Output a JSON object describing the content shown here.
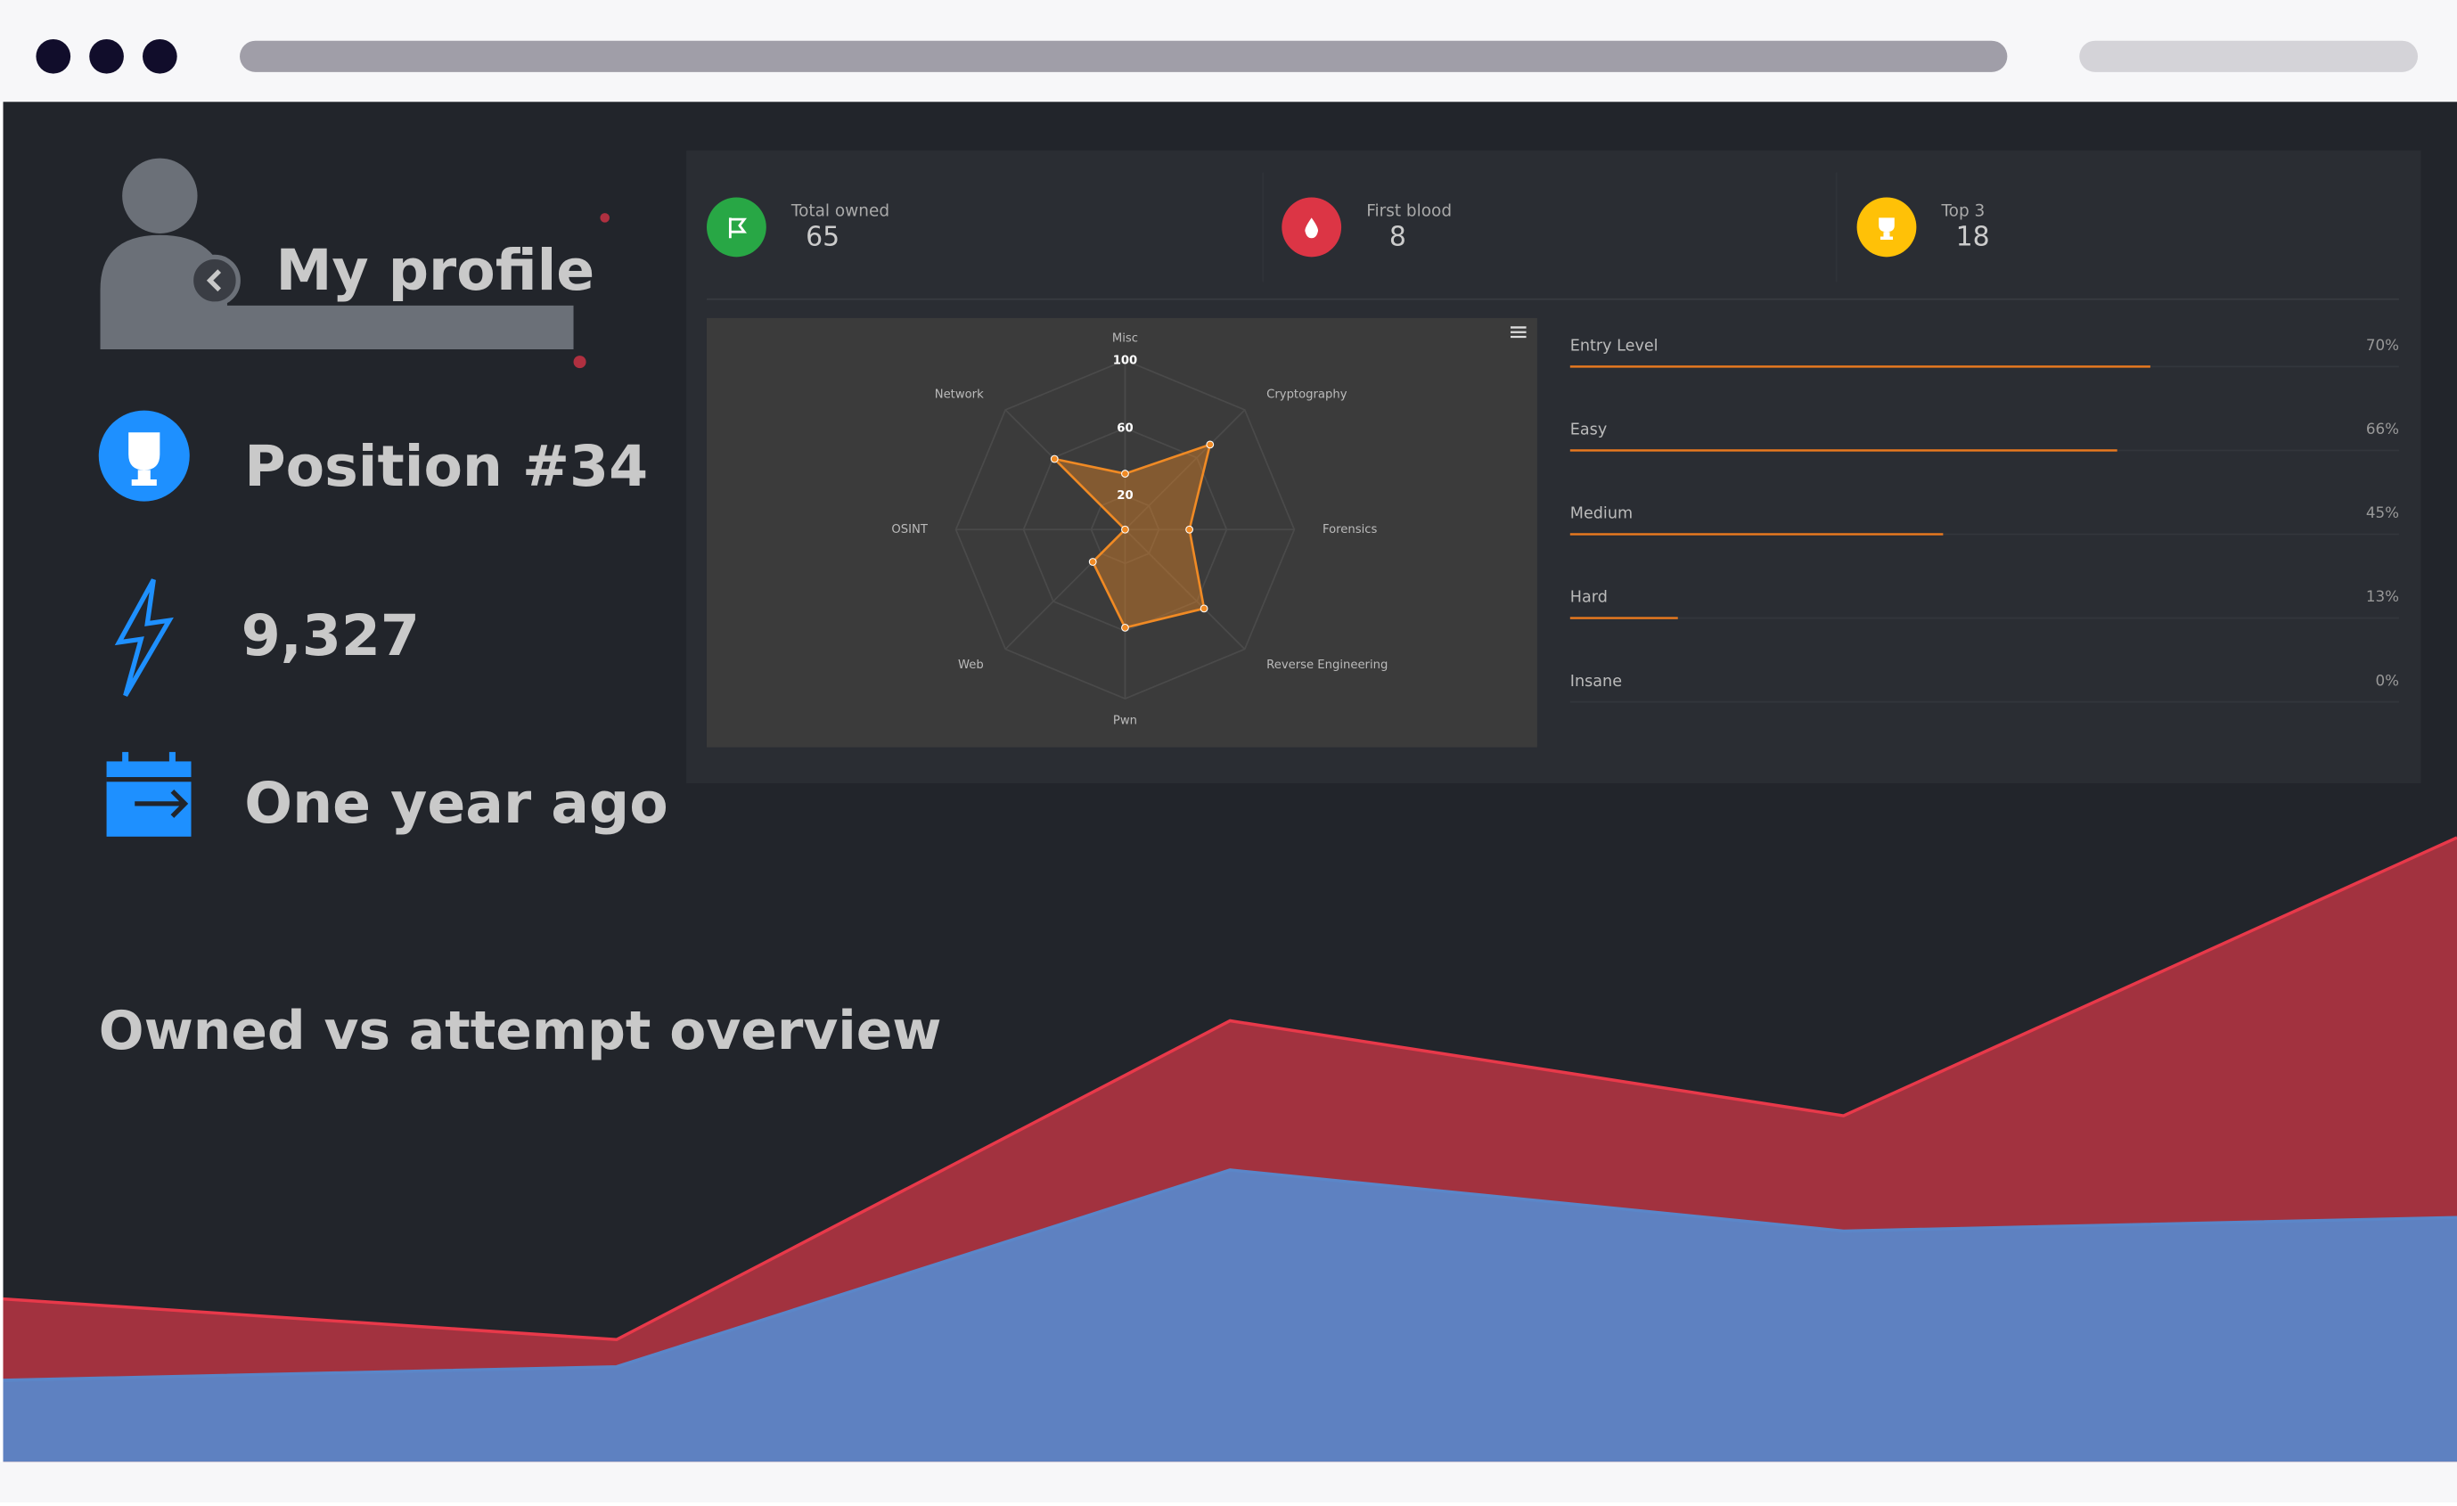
{
  "profile": {
    "title": "My profile",
    "position": "Position #34",
    "points": "9,327",
    "joined": "One year ago"
  },
  "stats": [
    {
      "label": "Total owned",
      "value": 65
    },
    {
      "label": "First blood",
      "value": 8
    },
    {
      "label": "Top 3",
      "value": 18
    }
  ],
  "chart_data": [
    {
      "type": "radar",
      "categories": [
        "Misc",
        "Cryptography",
        "Forensics",
        "Reverse Engineering",
        "Pwn",
        "Web",
        "OSINT",
        "Network"
      ],
      "values": [
        33,
        71,
        38,
        66,
        58,
        27,
        0,
        59
      ],
      "color": "#f08a24",
      "ylim": [
        0,
        100
      ],
      "yticks": [
        20,
        60,
        100
      ]
    },
    {
      "type": "bar",
      "orientation": "horizontal",
      "categories": [
        "Entry Level",
        "Easy",
        "Medium",
        "Hard",
        "Insane"
      ],
      "values": [
        70,
        66,
        45,
        13,
        0
      ],
      "value_labels": [
        "70%",
        "66%",
        "45%",
        "13%",
        "0%"
      ],
      "xlim": [
        0,
        100
      ],
      "color": "#e8791f"
    },
    {
      "type": "area",
      "title": "Owned vs attempt overview",
      "categories": [
        null,
        null,
        null,
        null,
        null
      ],
      "series": [
        {
          "color": "#e8394a",
          "values": [
            24,
            18,
            65,
            51,
            92
          ]
        },
        {
          "color": "#5b86c8",
          "values": [
            12,
            14,
            43,
            34,
            36
          ]
        }
      ],
      "ylim": [
        0,
        100
      ]
    }
  ]
}
